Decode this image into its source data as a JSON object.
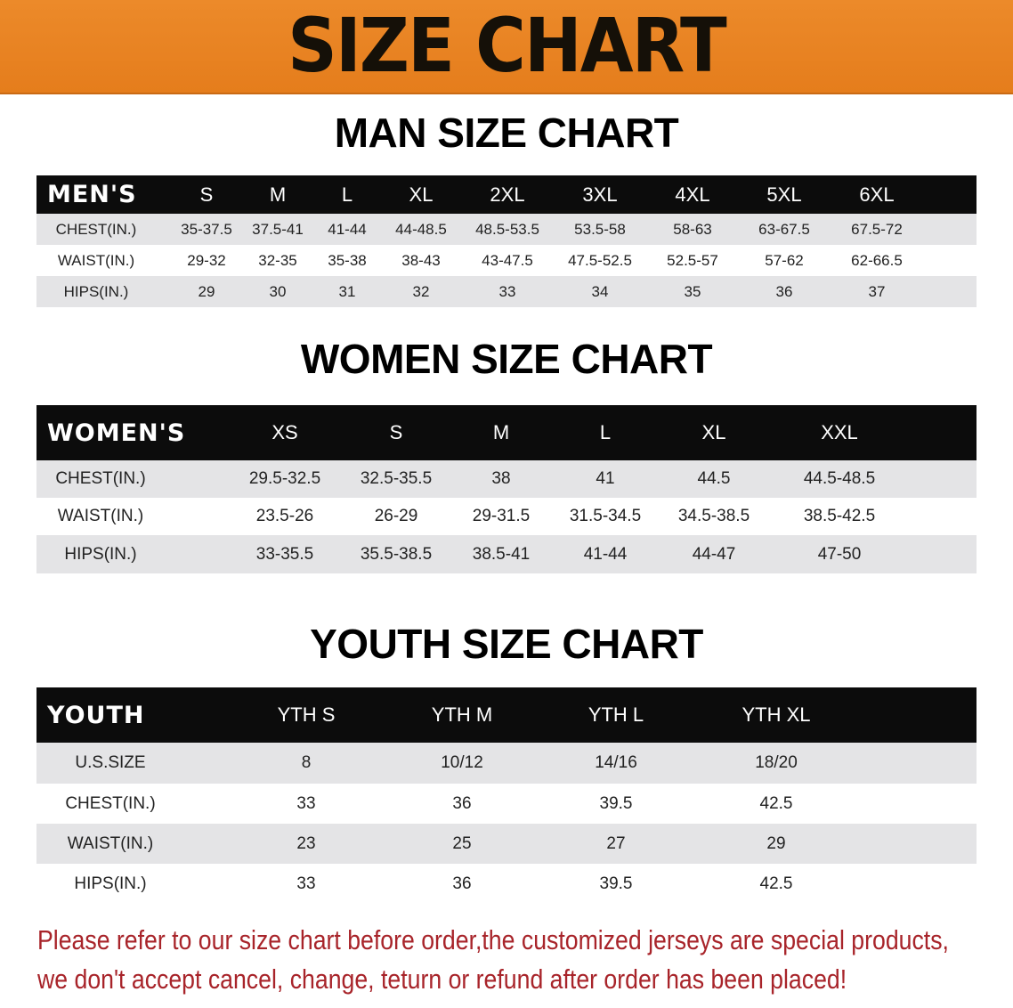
{
  "banner": {
    "title": "SIZE CHART",
    "background": "#e8831f"
  },
  "men": {
    "title": "MAN SIZE CHART",
    "header": [
      "MEN'S",
      "S",
      "M",
      "L",
      "XL",
      "2XL",
      "3XL",
      "4XL",
      "5XL",
      "6XL"
    ],
    "rows": [
      [
        "CHEST(IN.)",
        "35-37.5",
        "37.5-41",
        "41-44",
        "44-48.5",
        "48.5-53.5",
        "53.5-58",
        "58-63",
        "63-67.5",
        "67.5-72"
      ],
      [
        "WAIST(IN.)",
        "29-32",
        "32-35",
        "35-38",
        "38-43",
        "43-47.5",
        "47.5-52.5",
        "52.5-57",
        "57-62",
        "62-66.5"
      ],
      [
        "HIPS(IN.)",
        "29",
        "30",
        "31",
        "32",
        "33",
        "34",
        "35",
        "36",
        "37"
      ]
    ]
  },
  "women": {
    "title": "WOMEN SIZE CHART",
    "header": [
      "WOMEN'S",
      "XS",
      "S",
      "M",
      "L",
      "XL",
      "XXL"
    ],
    "rows": [
      [
        "CHEST(IN.)",
        "29.5-32.5",
        "32.5-35.5",
        "38",
        "41",
        "44.5",
        "44.5-48.5"
      ],
      [
        "WAIST(IN.)",
        "23.5-26",
        "26-29",
        "29-31.5",
        "31.5-34.5",
        "34.5-38.5",
        "38.5-42.5"
      ],
      [
        "HIPS(IN.)",
        "33-35.5",
        "35.5-38.5",
        "38.5-41",
        "41-44",
        "44-47",
        "47-50"
      ]
    ]
  },
  "youth": {
    "title": "YOUTH SIZE CHART",
    "header": [
      "YOUTH",
      "YTH S",
      "YTH M",
      "YTH L",
      "YTH XL"
    ],
    "rows": [
      [
        "U.S.SIZE",
        "8",
        "10/12",
        "14/16",
        "18/20"
      ],
      [
        "CHEST(IN.)",
        "33",
        "36",
        "39.5",
        "42.5"
      ],
      [
        "WAIST(IN.)",
        "23",
        "25",
        "27",
        "29"
      ],
      [
        "HIPS(IN.)",
        "33",
        "36",
        "39.5",
        "42.5"
      ]
    ]
  },
  "notice": {
    "line1": "Please refer to our size chart before order,the customized jerseys are special products,",
    "line2": "we don't accept cancel, change, teturn or refund after order has been placed!",
    "color": "#a8242a"
  }
}
